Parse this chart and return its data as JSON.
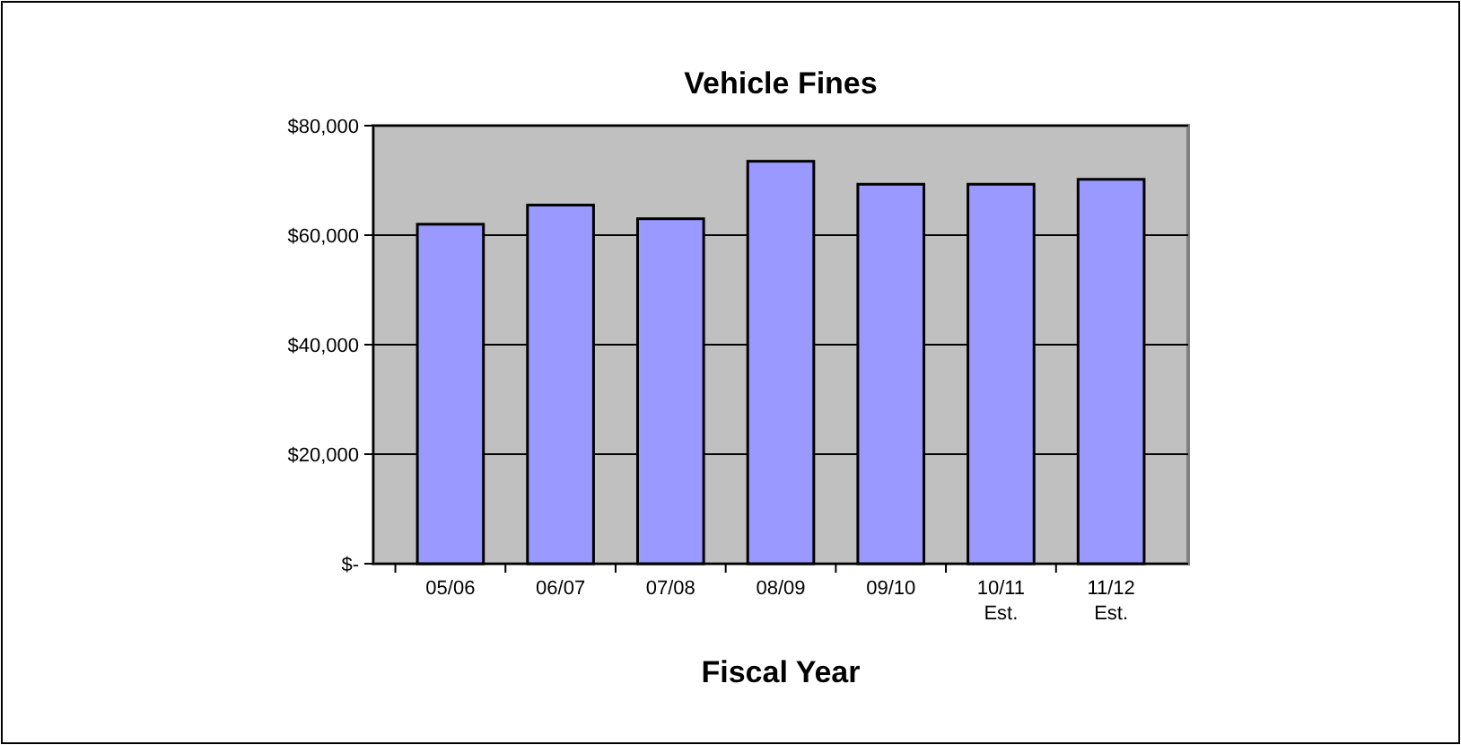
{
  "chart_data": {
    "type": "bar",
    "title": "Vehicle Fines",
    "xlabel": "Fiscal Year",
    "categories": [
      "05/06",
      "06/07",
      "07/08",
      "08/09",
      "09/10",
      "10/11\nEst.",
      "11/12\nEst."
    ],
    "values": [
      62000,
      65500,
      63000,
      73500,
      69300,
      69300,
      70200
    ],
    "color": "#9999ff",
    "ylim": [
      0,
      80000
    ],
    "yticks": [
      {
        "value": 0,
        "label": "$-"
      },
      {
        "value": 20000,
        "label": "$20,000"
      },
      {
        "value": 40000,
        "label": "$40,000"
      },
      {
        "value": 60000,
        "label": "$60,000"
      },
      {
        "value": 80000,
        "label": "$80,000"
      }
    ],
    "grid": true
  }
}
